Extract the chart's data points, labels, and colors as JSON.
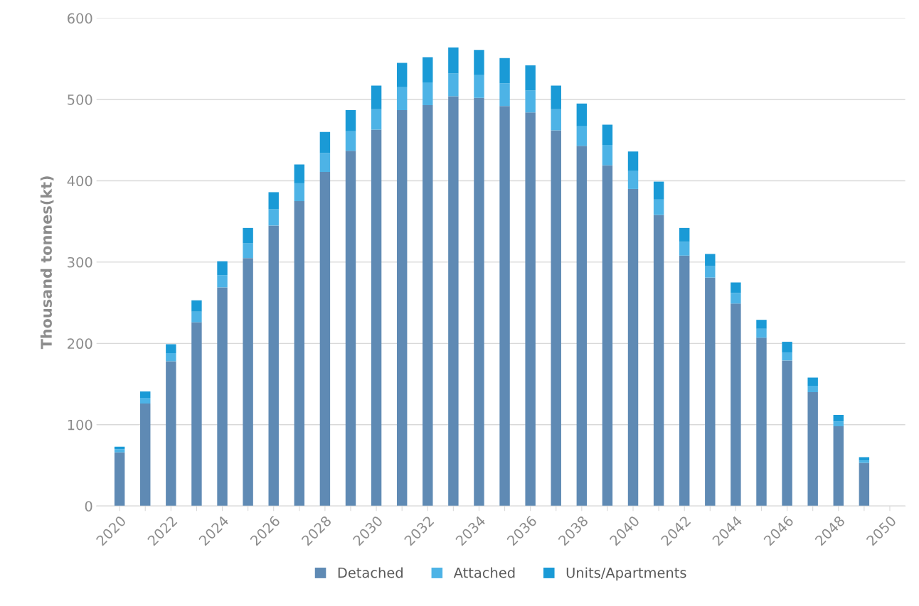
{
  "chart_data": {
    "type": "bar",
    "stacked": true,
    "ylabel": "Thousand tonnes(kt)",
    "categories": [
      "2020",
      null,
      "2022",
      null,
      "2024",
      null,
      "2026",
      null,
      "2028",
      null,
      "2030",
      null,
      "2032",
      null,
      "2034",
      null,
      "2036",
      null,
      "2038",
      null,
      "2040",
      null,
      "2042",
      null,
      "2044",
      null,
      "2046",
      null,
      "2048",
      null,
      "2050"
    ],
    "series": [
      {
        "name": "Detached",
        "color": "#5f8ab4",
        "values": [
          66,
          126,
          178,
          226,
          269,
          305,
          345,
          375,
          411,
          437,
          463,
          487,
          493,
          504,
          502,
          492,
          484,
          462,
          443,
          419,
          390,
          358,
          308,
          281,
          249,
          207,
          179,
          140,
          98,
          53,
          null
        ]
      },
      {
        "name": "Attached",
        "color": "#4db3e6",
        "values": [
          4,
          7,
          10,
          13,
          15,
          18,
          20,
          22,
          23,
          24,
          25,
          28,
          28,
          28,
          28,
          28,
          27,
          26,
          24,
          25,
          22,
          19,
          17,
          14,
          13,
          11,
          10,
          8,
          6,
          3,
          null
        ]
      },
      {
        "name": "Units/Apartments",
        "color": "#1a9ad6",
        "values": [
          3,
          8,
          11,
          14,
          17,
          19,
          21,
          23,
          26,
          26,
          29,
          30,
          31,
          32,
          31,
          31,
          31,
          29,
          28,
          25,
          24,
          22,
          17,
          15,
          13,
          11,
          13,
          10,
          8,
          4,
          null
        ]
      }
    ],
    "ylim": [
      0,
      600
    ],
    "yticks": [
      0,
      100,
      200,
      300,
      400,
      500,
      600
    ],
    "grid": "y",
    "legend": "bottom"
  }
}
